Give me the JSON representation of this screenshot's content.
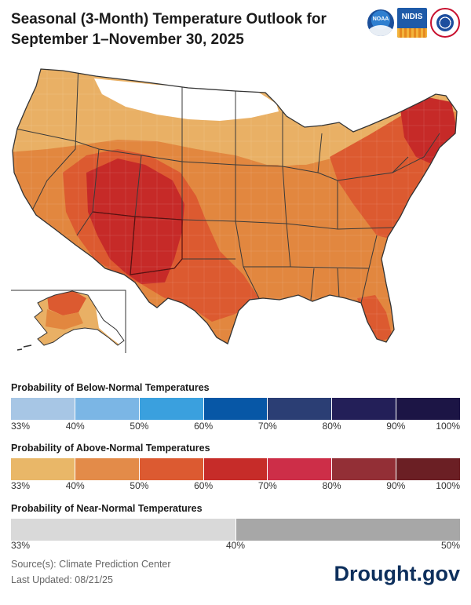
{
  "header": {
    "title_line1": "Seasonal (3-Month) Temperature Outlook for",
    "title_line2": "September 1–November 30, 2025",
    "logos": [
      {
        "name": "noaa-logo",
        "text": "NOAA"
      },
      {
        "name": "nidis-logo",
        "text": "NIDIS"
      },
      {
        "name": "nws-logo",
        "text": ""
      }
    ]
  },
  "map": {
    "region_colors": {
      "near_normal": "#d9d9d9",
      "above_33_40": "#e9b065",
      "above_40_50": "#e2873f",
      "above_50_60": "#dc5a30",
      "above_60_70": "#c62a28",
      "equal_chances": "#ffffff"
    }
  },
  "legend": {
    "below": {
      "heading": "Probability of Below-Normal Temperatures",
      "colors": [
        "#a7c6e5",
        "#7bb6e5",
        "#3aa0de",
        "#0757a6",
        "#2b3e74",
        "#231f58",
        "#1c1545"
      ],
      "ticks": [
        "33%",
        "40%",
        "50%",
        "60%",
        "70%",
        "80%",
        "90%",
        "100%"
      ]
    },
    "above": {
      "heading": "Probability of Above-Normal Temperatures",
      "colors": [
        "#e9b768",
        "#e38b49",
        "#dc5a31",
        "#c62c29",
        "#cd2e48",
        "#932f36",
        "#6b1f24"
      ],
      "ticks": [
        "33%",
        "40%",
        "50%",
        "60%",
        "70%",
        "80%",
        "90%",
        "100%"
      ]
    },
    "near": {
      "heading": "Probability of Near-Normal Temperatures",
      "colors": [
        "#d9d9d9",
        "#a7a7a7"
      ],
      "ticks": [
        "33%",
        "40%",
        "50%"
      ]
    }
  },
  "footer": {
    "source": "Source(s): Climate Prediction Center",
    "updated": "Last Updated: 08/21/25",
    "brand": "Drought.gov"
  }
}
